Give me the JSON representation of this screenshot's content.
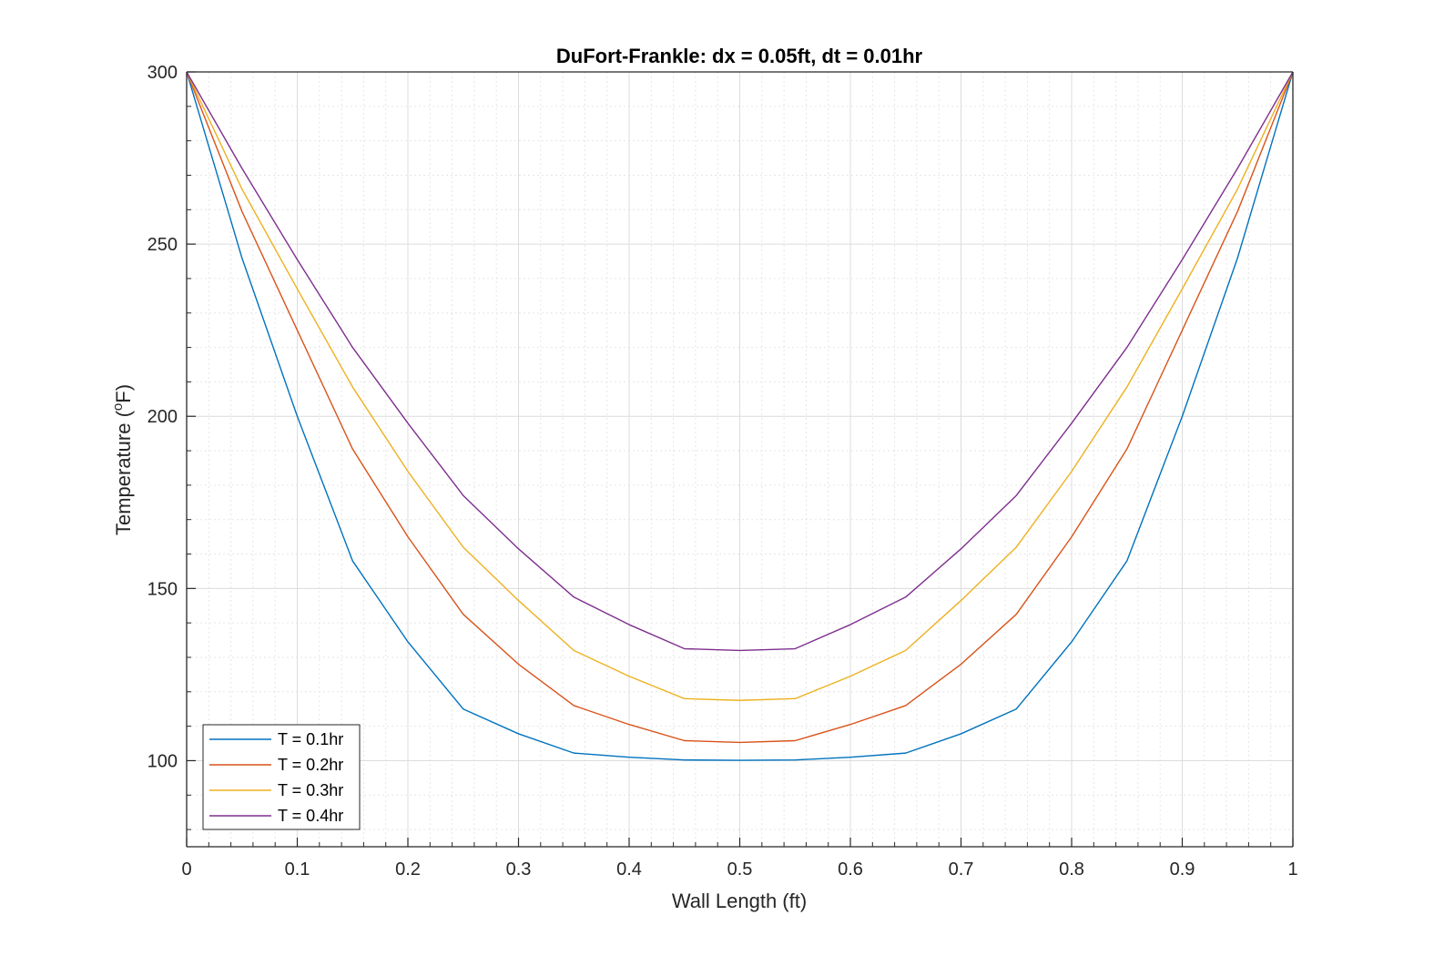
{
  "chart_data": {
    "type": "line",
    "title": "DuFort-Frankle: dx = 0.05ft, dt = 0.01hr",
    "xlabel": "Wall Length (ft)",
    "ylabel_main": "Temperature (",
    "ylabel_sup": "o",
    "ylabel_tail": "F)",
    "xlim": [
      0,
      1
    ],
    "ylim": [
      75,
      300
    ],
    "xticks": [
      0,
      0.1,
      0.2,
      0.3,
      0.4,
      0.5,
      0.6,
      0.7,
      0.8,
      0.9,
      1
    ],
    "xtick_labels": [
      "0",
      "0.1",
      "0.2",
      "0.3",
      "0.4",
      "0.5",
      "0.6",
      "0.7",
      "0.8",
      "0.9",
      "1"
    ],
    "yticks": [
      100,
      150,
      200,
      250,
      300
    ],
    "ytick_labels": [
      "100",
      "150",
      "200",
      "250",
      "300"
    ],
    "grid": true,
    "minor_grid": true,
    "legend_position": "bottom-left",
    "x": [
      0,
      0.05,
      0.1,
      0.15,
      0.2,
      0.25,
      0.3,
      0.35,
      0.4,
      0.45,
      0.5,
      0.55,
      0.6,
      0.65,
      0.7,
      0.75,
      0.8,
      0.85,
      0.9,
      0.95,
      1
    ],
    "series": [
      {
        "name": "T = 0.1hr",
        "color": "#0072BD",
        "values": [
          300,
          246,
          200,
          158,
          134.5,
          115,
          107.8,
          102.2,
          101,
          100.2,
          100.1,
          100.2,
          101,
          102.2,
          107.8,
          115,
          134.5,
          158,
          200,
          246,
          300
        ]
      },
      {
        "name": "T = 0.2hr",
        "color": "#D95319",
        "values": [
          300,
          259.5,
          225,
          190.5,
          165,
          142.5,
          128,
          116,
          110.5,
          105.8,
          105.3,
          105.8,
          110.5,
          116,
          128,
          142.5,
          165,
          190.5,
          225,
          259.5,
          300
        ]
      },
      {
        "name": "T = 0.3hr",
        "color": "#EDB120",
        "values": [
          300,
          266,
          237,
          208.5,
          184,
          162,
          146.5,
          132,
          124.5,
          118,
          117.5,
          118,
          124.5,
          132,
          146.5,
          162,
          184,
          208.5,
          237,
          266,
          300
        ]
      },
      {
        "name": "T = 0.4hr",
        "color": "#7E2F8E",
        "values": [
          300,
          272,
          245.5,
          220,
          198,
          177,
          161.5,
          147.5,
          139.5,
          132.5,
          132,
          132.5,
          139.5,
          147.5,
          161.5,
          177,
          198,
          220,
          245.5,
          272,
          300
        ]
      }
    ]
  }
}
